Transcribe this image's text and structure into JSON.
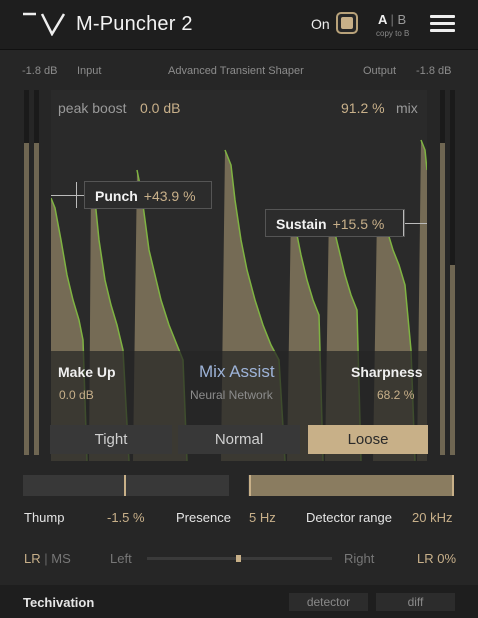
{
  "header": {
    "title": "M-Puncher 2",
    "on_label": "On",
    "ab_a": "A",
    "ab_sep": "|",
    "ab_b": "B",
    "copy_label": "copy to B"
  },
  "io": {
    "input_level": "-1.8 dB",
    "input_label": "Input",
    "subtitle": "Advanced Transient Shaper",
    "output_label": "Output",
    "output_level": "-1.8 dB"
  },
  "graph": {
    "peak_boost_label": "peak boost",
    "peak_boost_value": "0.0 dB",
    "mix_value": "91.2 %",
    "mix_label": "mix",
    "punch": {
      "label": "Punch",
      "value": "+43.9 %"
    },
    "sustain": {
      "label": "Sustain",
      "value": "+15.5 %"
    },
    "makeup": {
      "label": "Make Up",
      "value": "0.0 dB"
    },
    "mix_assist": {
      "label": "Mix Assist",
      "sub": "Neural Network"
    },
    "sharpness": {
      "label": "Sharpness",
      "value": "68.2 %"
    }
  },
  "modes": {
    "tight": "Tight",
    "normal": "Normal",
    "loose": "Loose",
    "selected": "Loose"
  },
  "controls": {
    "thump": {
      "label": "Thump",
      "value": "-1.5 %"
    },
    "presence": {
      "label": "Presence",
      "value": "5 Hz"
    },
    "detector_range": {
      "label": "Detector range",
      "value": "20 kHz"
    }
  },
  "stereo": {
    "lr": "LR",
    "sep": "|",
    "ms": "MS",
    "left": "Left",
    "right": "Right",
    "value": "LR 0%"
  },
  "footer": {
    "brand": "Techivation",
    "detector": "detector",
    "diff": "diff"
  },
  "colors": {
    "accent": "#c8b088",
    "value_text": "#c8b08a",
    "mix_assist": "#9db3d8",
    "waveform_fill": "#756b55",
    "waveform_line": "#7fb342"
  }
}
